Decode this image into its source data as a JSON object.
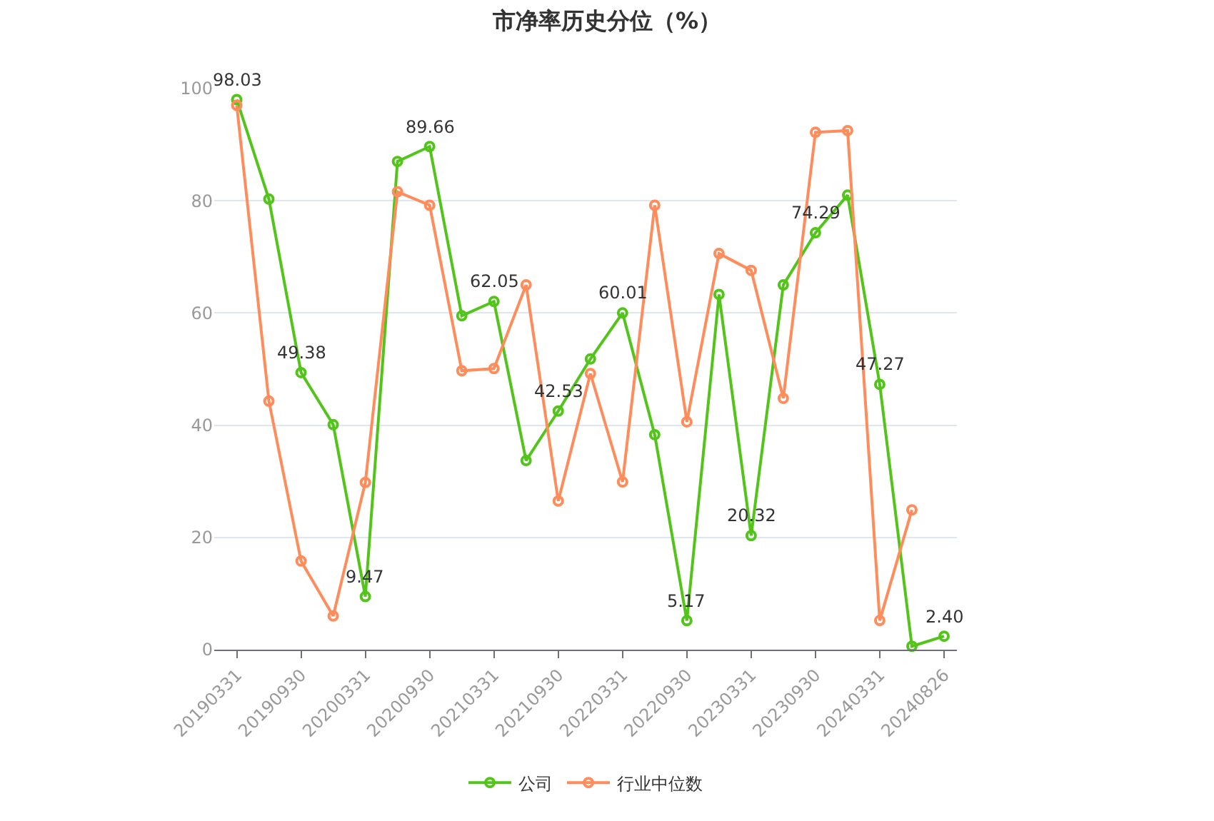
{
  "chart_data": {
    "type": "line",
    "title": "市净率历史分位（%）",
    "categories": [
      "20190331",
      null,
      "20190930",
      null,
      "20200331",
      null,
      "20200930",
      null,
      "20210331",
      null,
      "20210930",
      null,
      "20220331",
      null,
      "20220930",
      null,
      "20230331",
      null,
      "20230930",
      null,
      "20240331",
      null,
      "20240826"
    ],
    "series": [
      {
        "name": "公司",
        "color": "#52c41a",
        "values": [
          98.03,
          80.3,
          49.38,
          40.1,
          9.47,
          87,
          89.66,
          59.5,
          62.05,
          33.7,
          42.53,
          51.8,
          60.01,
          38.3,
          5.17,
          63.3,
          20.32,
          65,
          74.29,
          81,
          47.27,
          0.6,
          2.4
        ],
        "value_labels": [
          "98.03",
          null,
          "49.38",
          null,
          "9.47",
          null,
          "89.66",
          null,
          "62.05",
          null,
          "42.53",
          null,
          "60.01",
          null,
          "5.17",
          null,
          "20.32",
          null,
          "74.29",
          null,
          "47.27",
          null,
          "2.40"
        ]
      },
      {
        "name": "行业中位数",
        "color": "#ff8c5a",
        "values": [
          97,
          44.3,
          15.8,
          6,
          29.8,
          81.6,
          79.2,
          49.7,
          50.1,
          65,
          26.5,
          49.2,
          29.9,
          79.2,
          40.6,
          70.6,
          67.6,
          44.8,
          92.2,
          92.5,
          5.2,
          24.9,
          null
        ]
      }
    ],
    "ylim": [
      0,
      100
    ],
    "yticks": [
      0,
      20,
      40,
      60,
      80,
      100
    ],
    "grid": "y",
    "legend": "bottom",
    "marker": "circle",
    "line_style": "solid"
  }
}
